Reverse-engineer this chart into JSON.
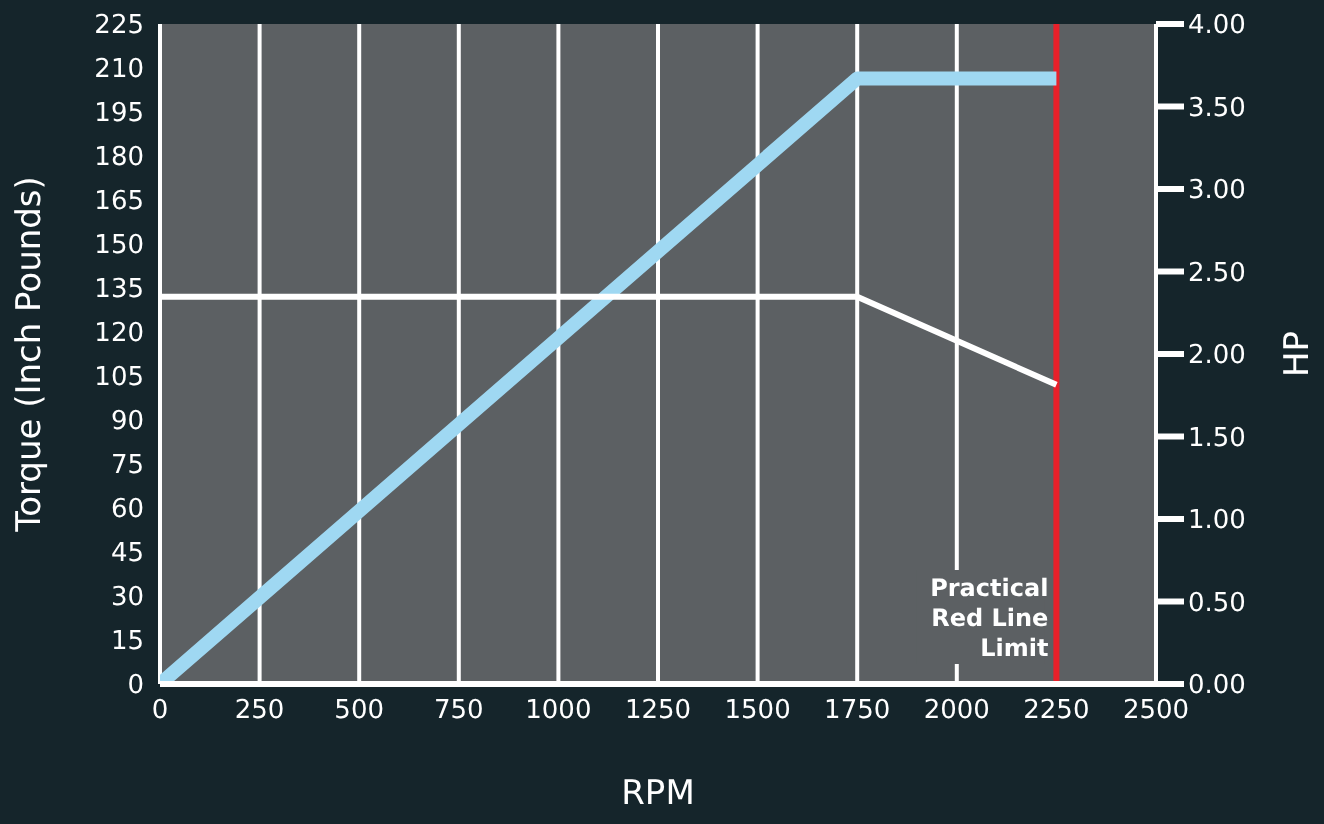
{
  "chart_data": {
    "type": "line",
    "xlabel": "RPM",
    "ylabel": "Torque (Inch Pounds)",
    "y2label": "HP",
    "xlim": [
      0,
      2500
    ],
    "xticks": [
      0,
      250,
      500,
      750,
      1000,
      1250,
      1500,
      1750,
      2000,
      2250,
      2500
    ],
    "ylim": [
      0,
      225
    ],
    "yticks": [
      0,
      15,
      30,
      45,
      60,
      75,
      90,
      105,
      120,
      135,
      150,
      165,
      180,
      195,
      210,
      225
    ],
    "y2lim": [
      0,
      4
    ],
    "y2ticks": [
      {
        "value": 0,
        "label": "0.00"
      },
      {
        "value": 0.5,
        "label": "0.50"
      },
      {
        "value": 1,
        "label": "1.00"
      },
      {
        "value": 1.5,
        "label": "1.50"
      },
      {
        "value": 2,
        "label": "2.00"
      },
      {
        "value": 2.5,
        "label": "2.50"
      },
      {
        "value": 3,
        "label": "3.00"
      },
      {
        "value": 3.5,
        "label": "3.50"
      },
      {
        "value": 4,
        "label": "4.00"
      }
    ],
    "grid": "x",
    "marker": "none",
    "line_style": "solid",
    "series": [
      {
        "color": "#9fd8f2",
        "x": [
          0,
          1750,
          2250
        ],
        "values": [
          0,
          3.67,
          3.67
        ],
        "axis": "y2"
      },
      {
        "color": "#ffffff",
        "x": [
          0,
          1750,
          2250
        ],
        "values": [
          132,
          132,
          102
        ]
      }
    ],
    "ref_lines": [
      {
        "axis": "x",
        "value": 2250,
        "label": "Practical Red Line Limit",
        "color": "#e8202a"
      }
    ]
  }
}
